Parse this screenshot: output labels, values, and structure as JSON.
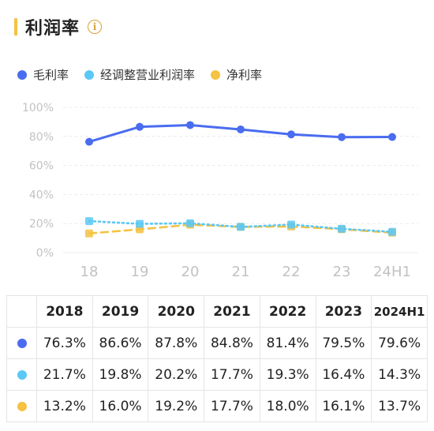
{
  "header": {
    "title": "利润率",
    "info_icon": "i"
  },
  "colors": {
    "gross": "#4a6cf0",
    "adjusted": "#5bc8f5",
    "net": "#f5c242"
  },
  "chart_data": {
    "type": "line",
    "categories": [
      "18",
      "19",
      "20",
      "21",
      "22",
      "23",
      "24H1"
    ],
    "ylim": [
      0,
      100
    ],
    "yticks": [
      "0%",
      "20%",
      "40%",
      "60%",
      "80%",
      "100%"
    ],
    "series": [
      {
        "name": "毛利率",
        "key": "gross",
        "style": "solid",
        "values": [
          76.3,
          86.6,
          87.8,
          84.8,
          81.4,
          79.5,
          79.6
        ]
      },
      {
        "name": "经调整营业利润率",
        "key": "adjusted",
        "style": "dotted",
        "values": [
          21.7,
          19.8,
          20.2,
          17.7,
          19.3,
          16.4,
          14.3
        ]
      },
      {
        "name": "净利率",
        "key": "net",
        "style": "dashed",
        "values": [
          13.2,
          16.0,
          19.2,
          17.7,
          18.0,
          16.1,
          13.7
        ]
      }
    ]
  },
  "table": {
    "headers": [
      "2018",
      "2019",
      "2020",
      "2021",
      "2022",
      "2023",
      "2024H1"
    ],
    "rows": [
      {
        "key": "gross",
        "cells": [
          "76.3%",
          "86.6%",
          "87.8%",
          "84.8%",
          "81.4%",
          "79.5%",
          "79.6%"
        ]
      },
      {
        "key": "adjusted",
        "cells": [
          "21.7%",
          "19.8%",
          "20.2%",
          "17.7%",
          "19.3%",
          "16.4%",
          "14.3%"
        ]
      },
      {
        "key": "net",
        "cells": [
          "13.2%",
          "16.0%",
          "19.2%",
          "17.7%",
          "18.0%",
          "16.1%",
          "13.7%"
        ]
      }
    ]
  }
}
